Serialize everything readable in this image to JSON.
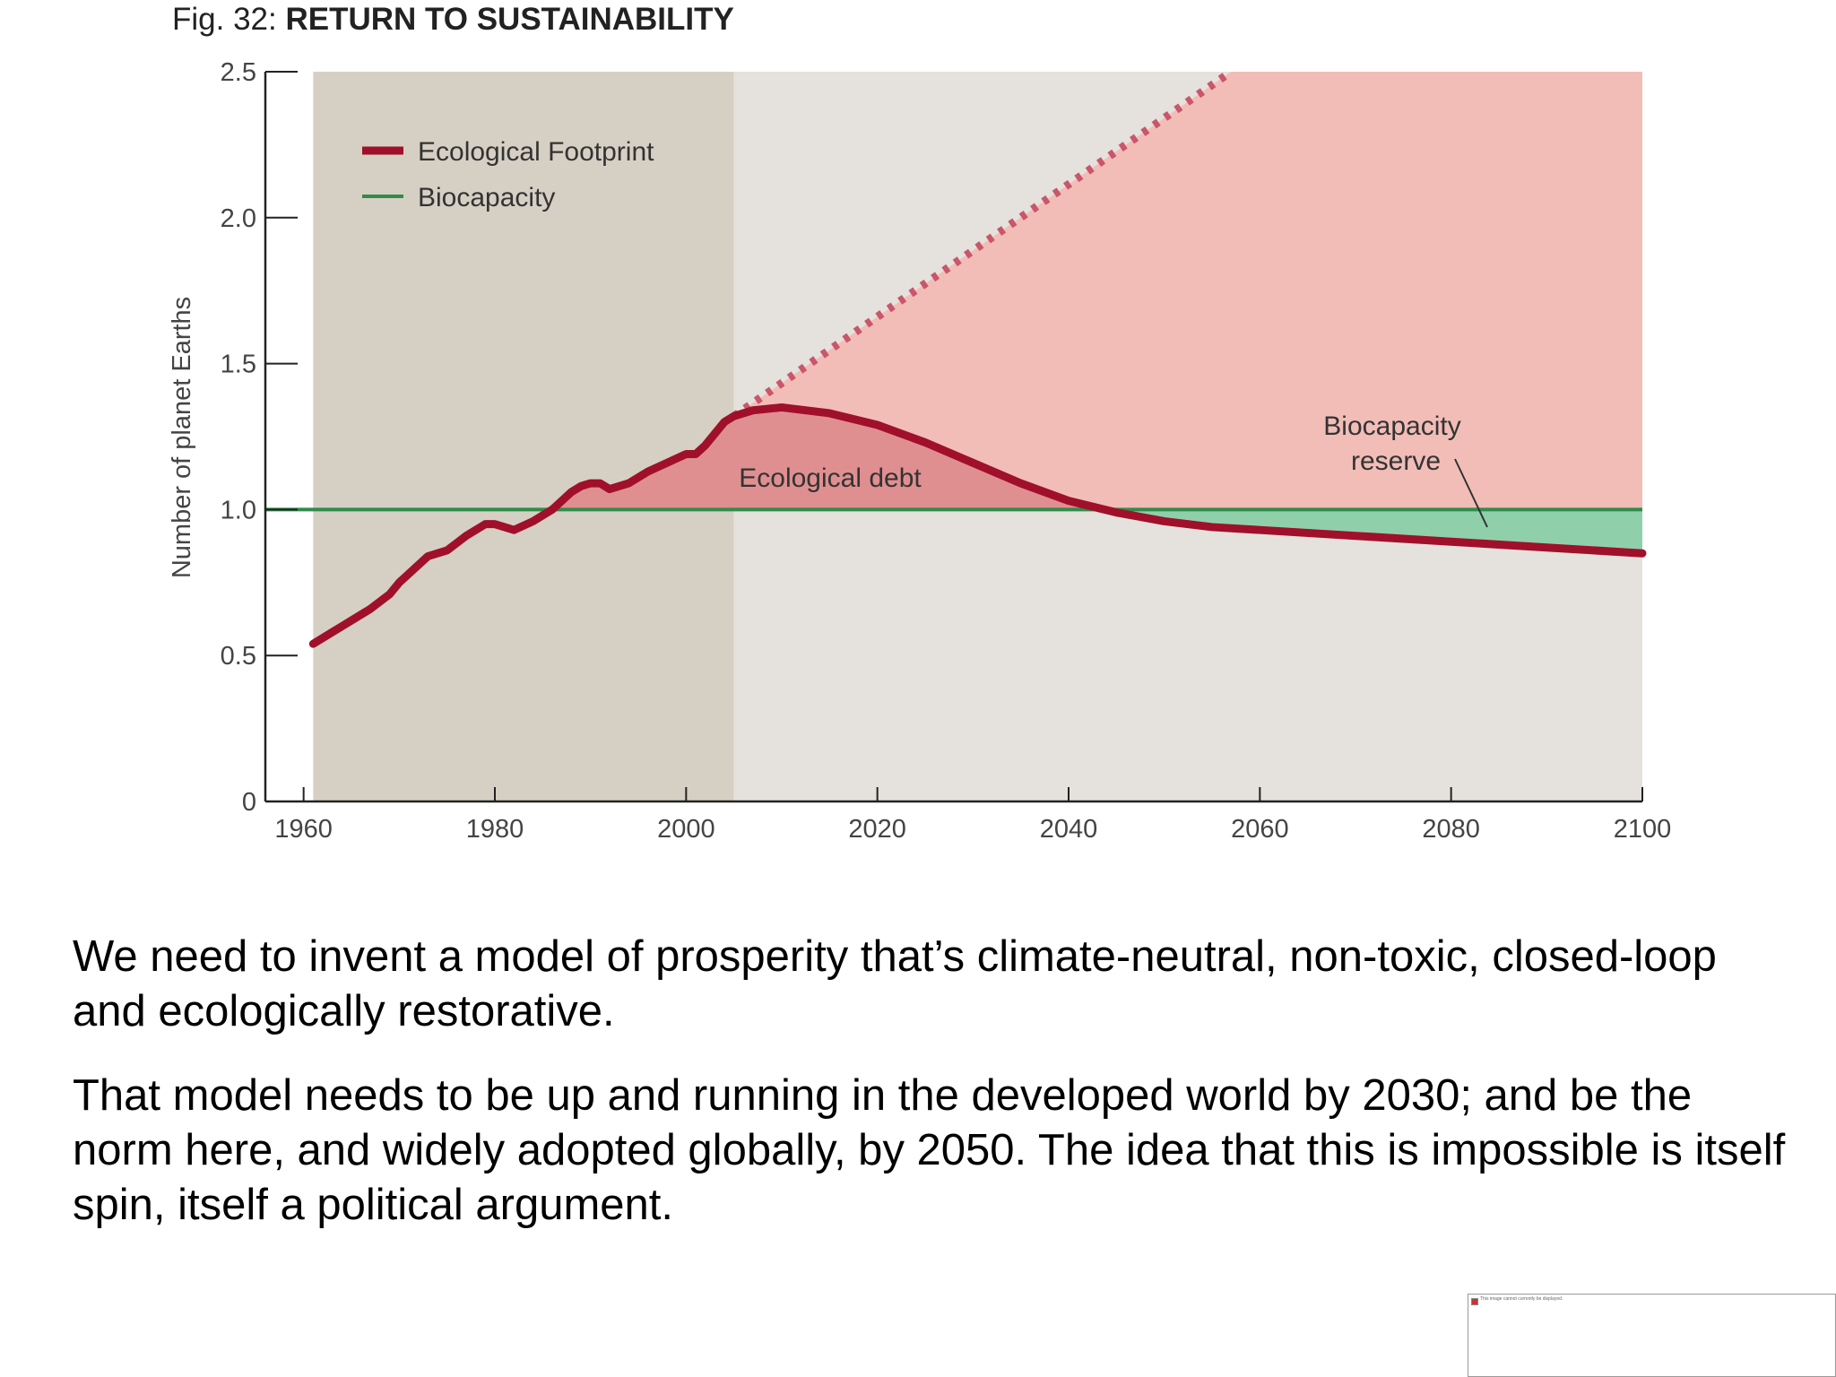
{
  "figure": {
    "prefix": "Fig. 32: ",
    "title": "RETURN TO SUSTAINABILITY"
  },
  "chart_data": {
    "type": "line",
    "ylabel": "Number of planet Earths",
    "xlabel": "",
    "xlim": [
      1956,
      2102
    ],
    "ylim": [
      0,
      2.5
    ],
    "x_ticks": [
      1960,
      1980,
      2000,
      2020,
      2040,
      2060,
      2080,
      2100
    ],
    "x_tick_labels": [
      "1960",
      "1980",
      "2000",
      "2020",
      "2040",
      "2060",
      "2080",
      "2100"
    ],
    "y_ticks": [
      0,
      0.5,
      1.0,
      1.5,
      2.0,
      2.5
    ],
    "y_tick_labels": [
      "0",
      "0.5",
      "1.0",
      "1.5",
      "2.0",
      "2.5"
    ],
    "grid": false,
    "legend_position": "top-left",
    "shaded_regions": [
      {
        "from": 1961,
        "to": 2005,
        "color": "#d6d0c4"
      },
      {
        "from": 2005,
        "to": 2100,
        "color": "#e5e1dc"
      }
    ],
    "series": [
      {
        "name": "Ecological Footprint",
        "color": "#a0102a",
        "style": "solid",
        "x": [
          1961,
          1963,
          1965,
          1967,
          1969,
          1970,
          1971,
          1973,
          1975,
          1977,
          1979,
          1980,
          1982,
          1984,
          1986,
          1987,
          1988,
          1989,
          1990,
          1991,
          1992,
          1994,
          1996,
          1998,
          2000,
          2001,
          2002,
          2003,
          2004,
          2005,
          2007,
          2010,
          2015,
          2020,
          2025,
          2030,
          2035,
          2040,
          2045,
          2050,
          2055,
          2060,
          2070,
          2080,
          2090,
          2100
        ],
        "y": [
          0.54,
          0.58,
          0.62,
          0.66,
          0.71,
          0.75,
          0.78,
          0.84,
          0.86,
          0.91,
          0.95,
          0.95,
          0.93,
          0.96,
          1.0,
          1.03,
          1.06,
          1.08,
          1.09,
          1.09,
          1.07,
          1.09,
          1.13,
          1.16,
          1.19,
          1.19,
          1.22,
          1.26,
          1.3,
          1.32,
          1.34,
          1.35,
          1.33,
          1.29,
          1.23,
          1.16,
          1.09,
          1.03,
          0.99,
          0.96,
          0.94,
          0.93,
          0.91,
          0.89,
          0.87,
          0.85
        ]
      },
      {
        "name": "Biocapacity",
        "color": "#2f8c4a",
        "style": "solid",
        "x": [
          1956,
          2100
        ],
        "y": [
          1.0,
          1.0
        ]
      },
      {
        "name": "",
        "color": "#c9566a",
        "style": "dotted",
        "x": [
          2005,
          2057
        ],
        "y": [
          1.32,
          2.5
        ]
      }
    ],
    "annotations": [
      {
        "text": "Ecological debt",
        "x": 2015,
        "y": 1.1
      },
      {
        "text": "Biocapacity",
        "x": 2075,
        "y": 1.28
      },
      {
        "text": "reserve",
        "x": 2075,
        "y": 1.16
      }
    ],
    "colors": {
      "debt_fill": "#e08f91",
      "projection_fill": "#f2bdb7",
      "reserve_fill": "#8fd0ab",
      "axis": "#222222"
    }
  },
  "text": {
    "paragraph_1": "We need to invent a model of prosperity that’s climate-neutral, non-toxic, closed-loop and ecologically restorative.",
    "paragraph_2": "That model needs to be up and running in the developed world by 2030; and be the norm here, and widely adopted globally, by 2050. The idea that this is impossible is itself spin, itself a political argument."
  },
  "broken_image": {
    "text": "This image cannot currently be displayed."
  }
}
